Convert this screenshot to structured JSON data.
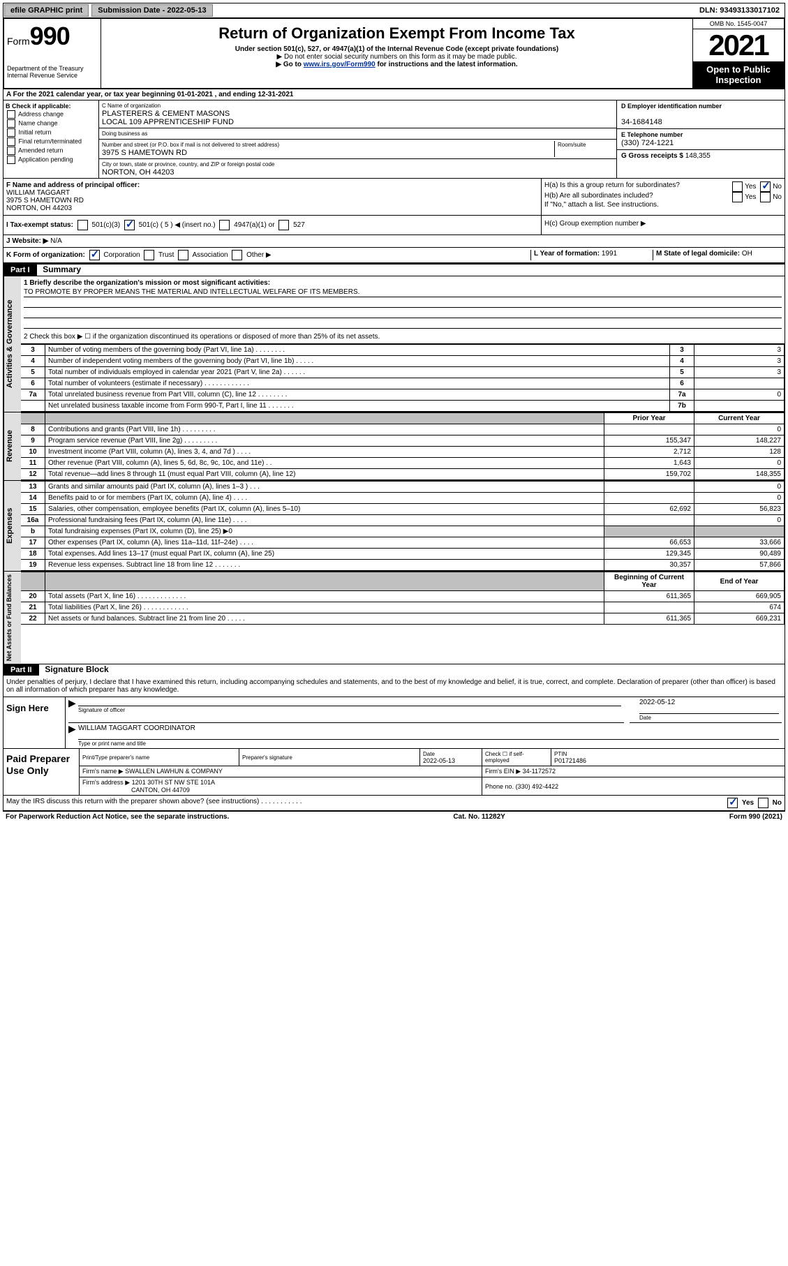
{
  "topbar": {
    "efile": "efile GRAPHIC print",
    "subdate_label": "Submission Date - ",
    "subdate": "2022-05-13",
    "dln_label": "DLN: ",
    "dln": "93493133017102"
  },
  "header": {
    "form_label": "Form",
    "form_num": "990",
    "dept": "Department of the Treasury\nInternal Revenue Service",
    "title": "Return of Organization Exempt From Income Tax",
    "sub": "Under section 501(c), 527, or 4947(a)(1) of the Internal Revenue Code (except private foundations)",
    "note1": "▶ Do not enter social security numbers on this form as it may be made public.",
    "note2_pre": "▶ Go to ",
    "note2_link": "www.irs.gov/Form990",
    "note2_post": " for instructions and the latest information.",
    "omb": "OMB No. 1545-0047",
    "year": "2021",
    "inspection": "Open to Public Inspection"
  },
  "rowA": "A For the 2021 calendar year, or tax year beginning 01-01-2021   , and ending 12-31-2021",
  "colB": {
    "header": "B Check if applicable:",
    "items": [
      "Address change",
      "Name change",
      "Initial return",
      "Final return/terminated",
      "Amended return",
      "Application pending"
    ]
  },
  "colC": {
    "name_label": "C Name of organization",
    "name": "PLASTERERS & CEMENT MASONS\nLOCAL 109 APPRENTICESHIP FUND",
    "dba_label": "Doing business as",
    "dba": "",
    "addr_label": "Number and street (or P.O. box if mail is not delivered to street address)",
    "room_label": "Room/suite",
    "addr": "3975 S HAMETOWN RD",
    "city_label": "City or town, state or province, country, and ZIP or foreign postal code",
    "city": "NORTON, OH  44203"
  },
  "colR": {
    "ein_label": "D Employer identification number",
    "ein": "34-1684148",
    "phone_label": "E Telephone number",
    "phone": "(330) 724-1221",
    "gross_label": "G Gross receipts $ ",
    "gross": "148,355"
  },
  "rowF": {
    "label": "F Name and address of principal officer:",
    "name": "WILLIAM TAGGART",
    "addr1": "3975 S HAMETOWN RD",
    "addr2": "NORTON, OH  44203"
  },
  "rowH": {
    "ha": "H(a)  Is this a group return for subordinates?",
    "hb": "H(b)  Are all subordinates included?",
    "hb_note": "If \"No,\" attach a list. See instructions.",
    "hc": "H(c)  Group exemption number ▶",
    "yes": "Yes",
    "no": "No"
  },
  "rowI": {
    "label": "I   Tax-exempt status:",
    "opts": [
      "501(c)(3)",
      "501(c) ( 5 ) ◀ (insert no.)",
      "4947(a)(1) or",
      "527"
    ]
  },
  "rowJ": {
    "label": "J   Website: ▶",
    "val": "N/A"
  },
  "rowK": {
    "label": "K Form of organization:",
    "opts": [
      "Corporation",
      "Trust",
      "Association",
      "Other ▶"
    ],
    "L_label": "L Year of formation: ",
    "L_val": "1991",
    "M_label": "M State of legal domicile: ",
    "M_val": "OH"
  },
  "part1": {
    "header": "Part I",
    "title": "Summary",
    "mission_label": "1  Briefly describe the organization's mission or most significant activities:",
    "mission": "TO PROMOTE BY PROPER MEANS THE MATERIAL AND INTELLECTUAL WELFARE OF ITS MEMBERS.",
    "line2": "2   Check this box ▶ ☐  if the organization discontinued its operations or disposed of more than 25% of its net assets.",
    "vtabs": {
      "gov": "Activities & Governance",
      "rev": "Revenue",
      "exp": "Expenses",
      "net": "Net Assets or\nFund Balances"
    }
  },
  "gov_rows": [
    {
      "n": "3",
      "d": "Number of voting members of the governing body (Part VI, line 1a)   .   .   .   .   .   .   .   .",
      "ln": "3",
      "v": "3"
    },
    {
      "n": "4",
      "d": "Number of independent voting members of the governing body (Part VI, line 1b)   .   .   .   .   .",
      "ln": "4",
      "v": "3"
    },
    {
      "n": "5",
      "d": "Total number of individuals employed in calendar year 2021 (Part V, line 2a)   .   .   .   .   .   .",
      "ln": "5",
      "v": "3"
    },
    {
      "n": "6",
      "d": "Total number of volunteers (estimate if necessary)   .   .   .   .   .   .   .   .   .   .   .   .",
      "ln": "6",
      "v": ""
    },
    {
      "n": "7a",
      "d": "Total unrelated business revenue from Part VIII, column (C), line 12   .   .   .   .   .   .   .   .",
      "ln": "7a",
      "v": "0"
    },
    {
      "n": "",
      "d": "Net unrelated business taxable income from Form 990-T, Part I, line 11   .   .   .   .   .   .   .",
      "ln": "7b",
      "v": ""
    }
  ],
  "two_col_header": {
    "prior": "Prior Year",
    "curr": "Current Year"
  },
  "rev_rows": [
    {
      "n": "8",
      "d": "Contributions and grants (Part VIII, line 1h)   .   .   .   .   .   .   .   .   .",
      "p": "",
      "c": "0"
    },
    {
      "n": "9",
      "d": "Program service revenue (Part VIII, line 2g)   .   .   .   .   .   .   .   .   .",
      "p": "155,347",
      "c": "148,227"
    },
    {
      "n": "10",
      "d": "Investment income (Part VIII, column (A), lines 3, 4, and 7d )   .   .   .   .",
      "p": "2,712",
      "c": "128"
    },
    {
      "n": "11",
      "d": "Other revenue (Part VIII, column (A), lines 5, 6d, 8c, 9c, 10c, and 11e)   .   .",
      "p": "1,643",
      "c": "0"
    },
    {
      "n": "12",
      "d": "Total revenue—add lines 8 through 11 (must equal Part VIII, column (A), line 12)",
      "p": "159,702",
      "c": "148,355"
    }
  ],
  "exp_rows": [
    {
      "n": "13",
      "d": "Grants and similar amounts paid (Part IX, column (A), lines 1–3 )   .   .   .",
      "p": "",
      "c": "0"
    },
    {
      "n": "14",
      "d": "Benefits paid to or for members (Part IX, column (A), line 4)   .   .   .   .",
      "p": "",
      "c": "0"
    },
    {
      "n": "15",
      "d": "Salaries, other compensation, employee benefits (Part IX, column (A), lines 5–10)",
      "p": "62,692",
      "c": "56,823"
    },
    {
      "n": "16a",
      "d": "Professional fundraising fees (Part IX, column (A), line 11e)   .   .   .   .",
      "p": "",
      "c": "0"
    },
    {
      "n": "b",
      "d": "Total fundraising expenses (Part IX, column (D), line 25) ▶0",
      "p": "GREY",
      "c": "GREY"
    },
    {
      "n": "17",
      "d": "Other expenses (Part IX, column (A), lines 11a–11d, 11f–24e)   .   .   .   .",
      "p": "66,653",
      "c": "33,666"
    },
    {
      "n": "18",
      "d": "Total expenses. Add lines 13–17 (must equal Part IX, column (A), line 25)",
      "p": "129,345",
      "c": "90,489"
    },
    {
      "n": "19",
      "d": "Revenue less expenses. Subtract line 18 from line 12   .   .   .   .   .   .   .",
      "p": "30,357",
      "c": "57,866"
    }
  ],
  "net_header": {
    "begin": "Beginning of Current Year",
    "end": "End of Year"
  },
  "net_rows": [
    {
      "n": "20",
      "d": "Total assets (Part X, line 16)   .   .   .   .   .   .   .   .   .   .   .   .   .",
      "p": "611,365",
      "c": "669,905"
    },
    {
      "n": "21",
      "d": "Total liabilities (Part X, line 26)   .   .   .   .   .   .   .   .   .   .   .   .",
      "p": "",
      "c": "674"
    },
    {
      "n": "22",
      "d": "Net assets or fund balances. Subtract line 21 from line 20   .   .   .   .   .",
      "p": "611,365",
      "c": "669,231"
    }
  ],
  "part2": {
    "header": "Part II",
    "title": "Signature Block",
    "jurat": "Under penalties of perjury, I declare that I have examined this return, including accompanying schedules and statements, and to the best of my knowledge and belief, it is true, correct, and complete. Declaration of preparer (other than officer) is based on all information of which preparer has any knowledge."
  },
  "sign": {
    "here": "Sign Here",
    "sig_label": "Signature of officer",
    "date": "2022-05-12",
    "date_label": "Date",
    "name": "WILLIAM TAGGART  COORDINATOR",
    "name_label": "Type or print name and title"
  },
  "paid": {
    "title": "Paid Preparer Use Only",
    "h1": "Print/Type preparer's name",
    "h2": "Preparer's signature",
    "h3": "Date",
    "h4": "Check ☐ if self-employed",
    "h5": "PTIN",
    "date": "2022-05-13",
    "ptin": "P01721486",
    "firm_label": "Firm's name   ▶",
    "firm": "SWALLEN LAWHUN & COMPANY",
    "ein_label": "Firm's EIN ▶",
    "ein": "34-1172572",
    "addr_label": "Firm's address ▶",
    "addr1": "1201 30TH ST NW STE 101A",
    "addr2": "CANTON, OH  44709",
    "phone_label": "Phone no.",
    "phone": "(330) 492-4422"
  },
  "discuss": "May the IRS discuss this return with the preparer shown above? (see instructions)   .   .   .   .   .   .   .   .   .   .   .",
  "footer": {
    "l": "For Paperwork Reduction Act Notice, see the separate instructions.",
    "m": "Cat. No. 11282Y",
    "r": "Form 990 (2021)"
  }
}
